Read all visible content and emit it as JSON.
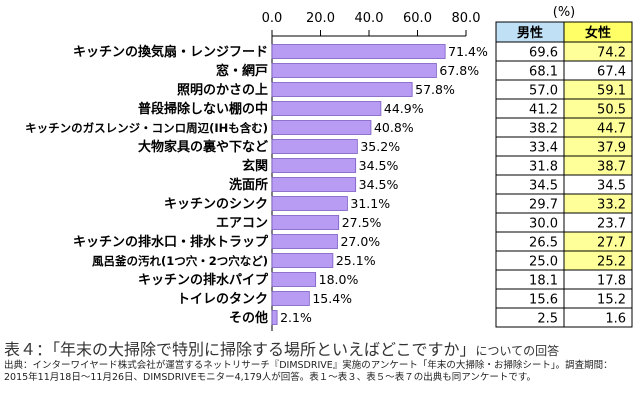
{
  "chart_data": {
    "type": "bar",
    "orientation": "horizontal",
    "categories": [
      "キッチンの換気扇・レンジフード",
      "窓・網戸",
      "照明のかさの上",
      "普段掃除しない棚の中",
      "キッチンのガスレンジ・コンロ周辺(IHも含む)",
      "大物家具の裏や下など",
      "玄関",
      "洗面所",
      "キッチンのシンク",
      "エアコン",
      "キッチンの排水口・排水トラップ",
      "風呂釜の汚れ(1つ穴・2つ穴など)",
      "キッチンの排水パイプ",
      "トイレのタンク",
      "その他"
    ],
    "values": [
      71.4,
      67.8,
      57.8,
      44.9,
      40.8,
      35.2,
      34.5,
      34.5,
      31.1,
      27.5,
      27.0,
      25.1,
      18.0,
      15.4,
      2.1
    ],
    "value_labels": [
      "71.4%",
      "67.8%",
      "57.8%",
      "44.9%",
      "40.8%",
      "35.2%",
      "34.5%",
      "34.5%",
      "31.1%",
      "27.5%",
      "27.0%",
      "25.1%",
      "18.0%",
      "15.4%",
      "2.1%"
    ],
    "xlim": [
      0,
      80
    ],
    "x_ticks": [
      "0.0",
      "20.0",
      "40.0",
      "60.0",
      "80.0"
    ],
    "bar_color": "#b89cf4",
    "bar_edge_color": "#7a5cc4",
    "table": {
      "unit": "(%)",
      "headers": [
        "男性",
        "女性"
      ],
      "header_colors": [
        "#bfe0f5",
        "#ffff66"
      ],
      "highlight_color": "#ffff99",
      "male": [
        "69.6",
        "68.1",
        "57.0",
        "41.2",
        "38.2",
        "33.4",
        "31.8",
        "34.5",
        "29.7",
        "30.0",
        "26.5",
        "25.0",
        "18.1",
        "15.6",
        "2.5"
      ],
      "female": [
        "74.2",
        "67.4",
        "59.1",
        "50.5",
        "44.7",
        "37.9",
        "38.7",
        "34.5",
        "33.2",
        "23.7",
        "27.7",
        "25.2",
        "17.8",
        "15.2",
        "1.6"
      ],
      "female_highlight": [
        true,
        false,
        true,
        true,
        true,
        true,
        true,
        false,
        true,
        false,
        true,
        true,
        false,
        false,
        false
      ]
    }
  },
  "caption": {
    "main": "表４：「年末の大掃除で特別に掃除する場所といえばどこですか」",
    "suffix": "についての回答"
  },
  "source_note": "出典：インターワイヤード株式会社が運営するネットリサーチ『DIMSDRIVE』実施のアンケート「年末の大掃除・お掃除シート」。調査期間：2015年11月18日～11月26日、DIMSDRIVEモニター4,179人が回答。表１～表３、表５～表７の出典も同アンケートです。"
}
